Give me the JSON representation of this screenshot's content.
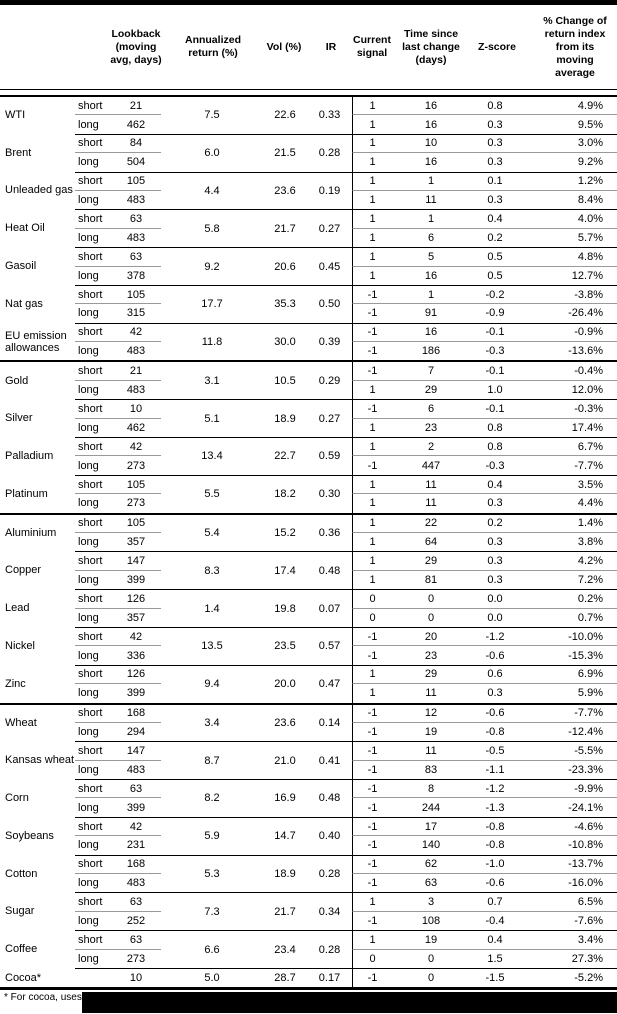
{
  "header": {
    "columns": [
      {
        "id": "lookback",
        "label": "Lookback\n(moving\navg, days)"
      },
      {
        "id": "annualized-return",
        "label": "Annualized\nreturn (%)"
      },
      {
        "id": "vol",
        "label": "Vol (%)"
      },
      {
        "id": "ir",
        "label": "IR"
      },
      {
        "id": "current-signal",
        "label": "Current\nsignal"
      },
      {
        "id": "time-since-change",
        "label": "Time since\nlast change\n(days)"
      },
      {
        "id": "z-score",
        "label": "Z-score"
      },
      {
        "id": "pct-change",
        "label": "% Change of\nreturn index\nfrom its\nmoving\naverage"
      }
    ]
  },
  "sections": [
    {
      "id": "energy",
      "commodities": [
        {
          "name": "WTI",
          "annualized_return_pct": "7.5",
          "vol_pct": "22.6",
          "ir": "0.33",
          "rows": [
            {
              "horizon": "short",
              "lookback_days": "21",
              "current_signal": "1",
              "days_since_change": "16",
              "z_score": "0.8",
              "pct_change_vs_ma": "4.9%"
            },
            {
              "horizon": "long",
              "lookback_days": "462",
              "current_signal": "1",
              "days_since_change": "16",
              "z_score": "0.3",
              "pct_change_vs_ma": "9.5%"
            }
          ]
        },
        {
          "name": "Brent",
          "annualized_return_pct": "6.0",
          "vol_pct": "21.5",
          "ir": "0.28",
          "rows": [
            {
              "horizon": "short",
              "lookback_days": "84",
              "current_signal": "1",
              "days_since_change": "10",
              "z_score": "0.3",
              "pct_change_vs_ma": "3.0%"
            },
            {
              "horizon": "long",
              "lookback_days": "504",
              "current_signal": "1",
              "days_since_change": "16",
              "z_score": "0.3",
              "pct_change_vs_ma": "9.2%"
            }
          ]
        },
        {
          "name": "Unleaded gas",
          "annualized_return_pct": "4.4",
          "vol_pct": "23.6",
          "ir": "0.19",
          "rows": [
            {
              "horizon": "short",
              "lookback_days": "105",
              "current_signal": "1",
              "days_since_change": "1",
              "z_score": "0.1",
              "pct_change_vs_ma": "1.2%"
            },
            {
              "horizon": "long",
              "lookback_days": "483",
              "current_signal": "1",
              "days_since_change": "11",
              "z_score": "0.3",
              "pct_change_vs_ma": "8.4%"
            }
          ]
        },
        {
          "name": "Heat Oil",
          "annualized_return_pct": "5.8",
          "vol_pct": "21.7",
          "ir": "0.27",
          "rows": [
            {
              "horizon": "short",
              "lookback_days": "63",
              "current_signal": "1",
              "days_since_change": "1",
              "z_score": "0.4",
              "pct_change_vs_ma": "4.0%"
            },
            {
              "horizon": "long",
              "lookback_days": "483",
              "current_signal": "1",
              "days_since_change": "6",
              "z_score": "0.2",
              "pct_change_vs_ma": "5.7%"
            }
          ]
        },
        {
          "name": "Gasoil",
          "annualized_return_pct": "9.2",
          "vol_pct": "20.6",
          "ir": "0.45",
          "rows": [
            {
              "horizon": "short",
              "lookback_days": "63",
              "current_signal": "1",
              "days_since_change": "5",
              "z_score": "0.5",
              "pct_change_vs_ma": "4.8%"
            },
            {
              "horizon": "long",
              "lookback_days": "378",
              "current_signal": "1",
              "days_since_change": "16",
              "z_score": "0.5",
              "pct_change_vs_ma": "12.7%"
            }
          ]
        },
        {
          "name": "Nat gas",
          "annualized_return_pct": "17.7",
          "vol_pct": "35.3",
          "ir": "0.50",
          "rows": [
            {
              "horizon": "short",
              "lookback_days": "105",
              "current_signal": "-1",
              "days_since_change": "1",
              "z_score": "-0.2",
              "pct_change_vs_ma": "-3.8%"
            },
            {
              "horizon": "long",
              "lookback_days": "315",
              "current_signal": "-1",
              "days_since_change": "91",
              "z_score": "-0.9",
              "pct_change_vs_ma": "-26.4%"
            }
          ]
        },
        {
          "name": "EU emission allowances",
          "annualized_return_pct": "11.8",
          "vol_pct": "30.0",
          "ir": "0.39",
          "rows": [
            {
              "horizon": "short",
              "lookback_days": "42",
              "current_signal": "-1",
              "days_since_change": "16",
              "z_score": "-0.1",
              "pct_change_vs_ma": "-0.9%"
            },
            {
              "horizon": "long",
              "lookback_days": "483",
              "current_signal": "-1",
              "days_since_change": "186",
              "z_score": "-0.3",
              "pct_change_vs_ma": "-13.6%"
            }
          ]
        }
      ]
    },
    {
      "id": "precious-metals",
      "commodities": [
        {
          "name": "Gold",
          "annualized_return_pct": "3.1",
          "vol_pct": "10.5",
          "ir": "0.29",
          "rows": [
            {
              "horizon": "short",
              "lookback_days": "21",
              "current_signal": "-1",
              "days_since_change": "7",
              "z_score": "-0.1",
              "pct_change_vs_ma": "-0.4%"
            },
            {
              "horizon": "long",
              "lookback_days": "483",
              "current_signal": "1",
              "days_since_change": "29",
              "z_score": "1.0",
              "pct_change_vs_ma": "12.0%"
            }
          ]
        },
        {
          "name": "Silver",
          "annualized_return_pct": "5.1",
          "vol_pct": "18.9",
          "ir": "0.27",
          "rows": [
            {
              "horizon": "short",
              "lookback_days": "10",
              "current_signal": "-1",
              "days_since_change": "6",
              "z_score": "-0.1",
              "pct_change_vs_ma": "-0.3%"
            },
            {
              "horizon": "long",
              "lookback_days": "462",
              "current_signal": "1",
              "days_since_change": "23",
              "z_score": "0.8",
              "pct_change_vs_ma": "17.4%"
            }
          ]
        },
        {
          "name": "Palladium",
          "annualized_return_pct": "13.4",
          "vol_pct": "22.7",
          "ir": "0.59",
          "rows": [
            {
              "horizon": "short",
              "lookback_days": "42",
              "current_signal": "1",
              "days_since_change": "2",
              "z_score": "0.8",
              "pct_change_vs_ma": "6.7%"
            },
            {
              "horizon": "long",
              "lookback_days": "273",
              "current_signal": "-1",
              "days_since_change": "447",
              "z_score": "-0.3",
              "pct_change_vs_ma": "-7.7%"
            }
          ]
        },
        {
          "name": "Platinum",
          "annualized_return_pct": "5.5",
          "vol_pct": "18.2",
          "ir": "0.30",
          "rows": [
            {
              "horizon": "short",
              "lookback_days": "105",
              "current_signal": "1",
              "days_since_change": "11",
              "z_score": "0.4",
              "pct_change_vs_ma": "3.5%"
            },
            {
              "horizon": "long",
              "lookback_days": "273",
              "current_signal": "1",
              "days_since_change": "11",
              "z_score": "0.3",
              "pct_change_vs_ma": "4.4%"
            }
          ]
        }
      ]
    },
    {
      "id": "base-metals",
      "commodities": [
        {
          "name": "Aluminium",
          "annualized_return_pct": "5.4",
          "vol_pct": "15.2",
          "ir": "0.36",
          "rows": [
            {
              "horizon": "short",
              "lookback_days": "105",
              "current_signal": "1",
              "days_since_change": "22",
              "z_score": "0.2",
              "pct_change_vs_ma": "1.4%"
            },
            {
              "horizon": "long",
              "lookback_days": "357",
              "current_signal": "1",
              "days_since_change": "64",
              "z_score": "0.3",
              "pct_change_vs_ma": "3.8%"
            }
          ]
        },
        {
          "name": "Copper",
          "annualized_return_pct": "8.3",
          "vol_pct": "17.4",
          "ir": "0.48",
          "rows": [
            {
              "horizon": "short",
              "lookback_days": "147",
              "current_signal": "1",
              "days_since_change": "29",
              "z_score": "0.3",
              "pct_change_vs_ma": "4.2%"
            },
            {
              "horizon": "long",
              "lookback_days": "399",
              "current_signal": "1",
              "days_since_change": "81",
              "z_score": "0.3",
              "pct_change_vs_ma": "7.2%"
            }
          ]
        },
        {
          "name": "Lead",
          "annualized_return_pct": "1.4",
          "vol_pct": "19.8",
          "ir": "0.07",
          "rows": [
            {
              "horizon": "short",
              "lookback_days": "126",
              "current_signal": "0",
              "days_since_change": "0",
              "z_score": "0.0",
              "pct_change_vs_ma": "0.2%"
            },
            {
              "horizon": "long",
              "lookback_days": "357",
              "current_signal": "0",
              "days_since_change": "0",
              "z_score": "0.0",
              "pct_change_vs_ma": "0.7%"
            }
          ]
        },
        {
          "name": "Nickel",
          "annualized_return_pct": "13.5",
          "vol_pct": "23.5",
          "ir": "0.57",
          "rows": [
            {
              "horizon": "short",
              "lookback_days": "42",
              "current_signal": "-1",
              "days_since_change": "20",
              "z_score": "-1.2",
              "pct_change_vs_ma": "-10.0%"
            },
            {
              "horizon": "long",
              "lookback_days": "336",
              "current_signal": "-1",
              "days_since_change": "23",
              "z_score": "-0.6",
              "pct_change_vs_ma": "-15.3%"
            }
          ]
        },
        {
          "name": "Zinc",
          "annualized_return_pct": "9.4",
          "vol_pct": "20.0",
          "ir": "0.47",
          "rows": [
            {
              "horizon": "short",
              "lookback_days": "126",
              "current_signal": "1",
              "days_since_change": "29",
              "z_score": "0.6",
              "pct_change_vs_ma": "6.9%"
            },
            {
              "horizon": "long",
              "lookback_days": "399",
              "current_signal": "1",
              "days_since_change": "11",
              "z_score": "0.3",
              "pct_change_vs_ma": "5.9%"
            }
          ]
        }
      ]
    },
    {
      "id": "agriculture",
      "commodities": [
        {
          "name": "Wheat",
          "annualized_return_pct": "3.4",
          "vol_pct": "23.6",
          "ir": "0.14",
          "rows": [
            {
              "horizon": "short",
              "lookback_days": "168",
              "current_signal": "-1",
              "days_since_change": "12",
              "z_score": "-0.6",
              "pct_change_vs_ma": "-7.7%"
            },
            {
              "horizon": "long",
              "lookback_days": "294",
              "current_signal": "-1",
              "days_since_change": "19",
              "z_score": "-0.8",
              "pct_change_vs_ma": "-12.4%"
            }
          ]
        },
        {
          "name": "Kansas wheat",
          "annualized_return_pct": "8.7",
          "vol_pct": "21.0",
          "ir": "0.41",
          "rows": [
            {
              "horizon": "short",
              "lookback_days": "147",
              "current_signal": "-1",
              "days_since_change": "11",
              "z_score": "-0.5",
              "pct_change_vs_ma": "-5.5%"
            },
            {
              "horizon": "long",
              "lookback_days": "483",
              "current_signal": "-1",
              "days_since_change": "83",
              "z_score": "-1.1",
              "pct_change_vs_ma": "-23.3%"
            }
          ]
        },
        {
          "name": "Corn",
          "annualized_return_pct": "8.2",
          "vol_pct": "16.9",
          "ir": "0.48",
          "rows": [
            {
              "horizon": "short",
              "lookback_days": "63",
              "current_signal": "-1",
              "days_since_change": "8",
              "z_score": "-1.2",
              "pct_change_vs_ma": "-9.9%"
            },
            {
              "horizon": "long",
              "lookback_days": "399",
              "current_signal": "-1",
              "days_since_change": "244",
              "z_score": "-1.3",
              "pct_change_vs_ma": "-24.1%"
            }
          ]
        },
        {
          "name": "Soybeans",
          "annualized_return_pct": "5.9",
          "vol_pct": "14.7",
          "ir": "0.40",
          "rows": [
            {
              "horizon": "short",
              "lookback_days": "42",
              "current_signal": "-1",
              "days_since_change": "17",
              "z_score": "-0.8",
              "pct_change_vs_ma": "-4.6%"
            },
            {
              "horizon": "long",
              "lookback_days": "231",
              "current_signal": "-1",
              "days_since_change": "140",
              "z_score": "-0.8",
              "pct_change_vs_ma": "-10.8%"
            }
          ]
        },
        {
          "name": "Cotton",
          "annualized_return_pct": "5.3",
          "vol_pct": "18.9",
          "ir": "0.28",
          "rows": [
            {
              "horizon": "short",
              "lookback_days": "168",
              "current_signal": "-1",
              "days_since_change": "62",
              "z_score": "-1.0",
              "pct_change_vs_ma": "-13.7%"
            },
            {
              "horizon": "long",
              "lookback_days": "483",
              "current_signal": "-1",
              "days_since_change": "63",
              "z_score": "-0.6",
              "pct_change_vs_ma": "-16.0%"
            }
          ]
        },
        {
          "name": "Sugar",
          "annualized_return_pct": "7.3",
          "vol_pct": "21.7",
          "ir": "0.34",
          "rows": [
            {
              "horizon": "short",
              "lookback_days": "63",
              "current_signal": "1",
              "days_since_change": "3",
              "z_score": "0.7",
              "pct_change_vs_ma": "6.5%"
            },
            {
              "horizon": "long",
              "lookback_days": "252",
              "current_signal": "-1",
              "days_since_change": "108",
              "z_score": "-0.4",
              "pct_change_vs_ma": "-7.6%"
            }
          ]
        },
        {
          "name": "Coffee",
          "annualized_return_pct": "6.6",
          "vol_pct": "23.4",
          "ir": "0.28",
          "rows": [
            {
              "horizon": "short",
              "lookback_days": "63",
              "current_signal": "1",
              "days_since_change": "19",
              "z_score": "0.4",
              "pct_change_vs_ma": "3.4%"
            },
            {
              "horizon": "long",
              "lookback_days": "273",
              "current_signal": "0",
              "days_since_change": "0",
              "z_score": "1.5",
              "pct_change_vs_ma": "27.3%"
            }
          ]
        },
        {
          "name": "Cocoa*",
          "annualized_return_pct": "5.0",
          "vol_pct": "28.7",
          "ir": "0.17",
          "rows": [
            {
              "horizon": "",
              "lookback_days": "10",
              "current_signal": "-1",
              "days_since_change": "0",
              "z_score": "-1.5",
              "pct_change_vs_ma": "-5.2%"
            }
          ]
        }
      ]
    }
  ],
  "footnote": "* For cocoa, uses c"
}
